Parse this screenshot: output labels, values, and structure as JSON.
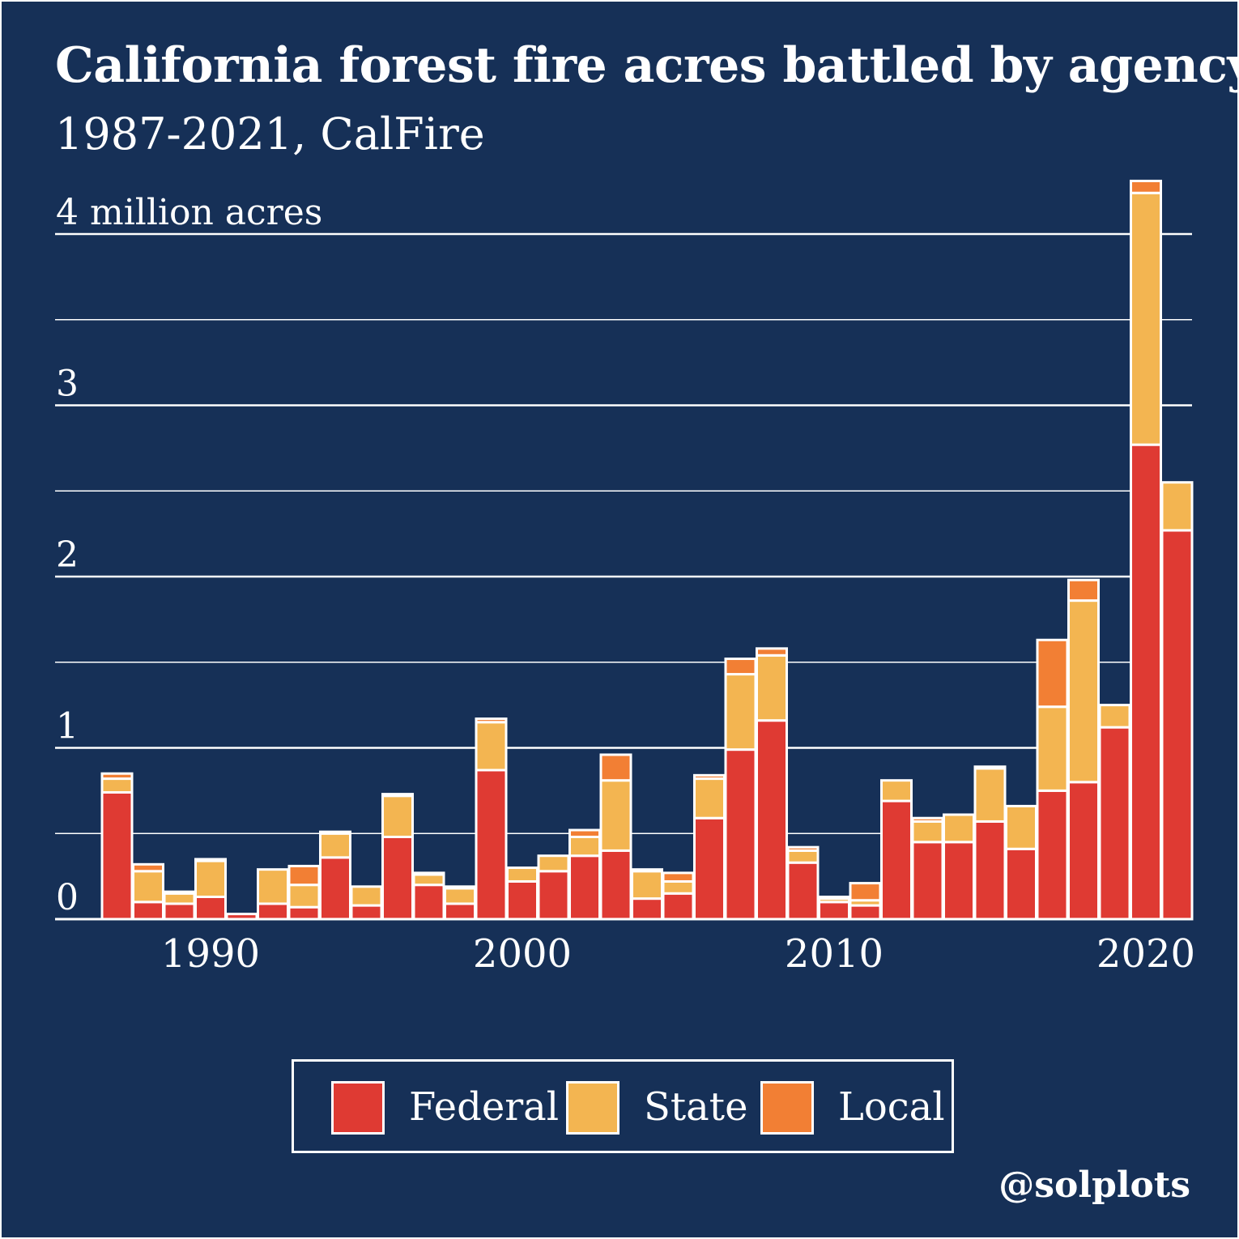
{
  "title": "California forest fire acres battled by agency",
  "subtitle": "1987-2021, CalFire",
  "credit": "@solplots",
  "colors": {
    "background": "#163057",
    "federal": "#df3a33",
    "state": "#f3b551",
    "local": "#f27f34",
    "outline": "#ffffff"
  },
  "chart_data": {
    "type": "bar",
    "stacked": true,
    "x": [
      1987,
      1988,
      1989,
      1990,
      1991,
      1992,
      1993,
      1994,
      1995,
      1996,
      1997,
      1998,
      1999,
      2000,
      2001,
      2002,
      2003,
      2004,
      2005,
      2006,
      2007,
      2008,
      2009,
      2010,
      2011,
      2012,
      2013,
      2014,
      2015,
      2016,
      2017,
      2018,
      2019,
      2020,
      2021
    ],
    "series": [
      {
        "name": "Federal",
        "color": "#df3a33",
        "values": [
          0.74,
          0.1,
          0.09,
          0.13,
          0.03,
          0.09,
          0.07,
          0.36,
          0.08,
          0.48,
          0.2,
          0.09,
          0.87,
          0.22,
          0.28,
          0.37,
          0.4,
          0.12,
          0.15,
          0.59,
          0.99,
          1.16,
          0.33,
          0.1,
          0.08,
          0.69,
          0.45,
          0.45,
          0.57,
          0.41,
          0.75,
          0.8,
          1.12,
          2.77,
          2.27
        ]
      },
      {
        "name": "State",
        "color": "#f3b551",
        "values": [
          0.08,
          0.18,
          0.06,
          0.21,
          0.0,
          0.2,
          0.13,
          0.14,
          0.11,
          0.24,
          0.06,
          0.09,
          0.28,
          0.08,
          0.09,
          0.11,
          0.41,
          0.16,
          0.07,
          0.23,
          0.44,
          0.38,
          0.07,
          0.02,
          0.03,
          0.12,
          0.12,
          0.16,
          0.31,
          0.25,
          0.49,
          1.06,
          0.13,
          1.47,
          0.28
        ]
      },
      {
        "name": "Local",
        "color": "#f27f34",
        "values": [
          0.03,
          0.04,
          0.01,
          0.01,
          0.0,
          0.0,
          0.11,
          0.01,
          0.0,
          0.01,
          0.01,
          0.01,
          0.02,
          0.0,
          0.0,
          0.04,
          0.15,
          0.01,
          0.05,
          0.02,
          0.09,
          0.04,
          0.02,
          0.01,
          0.1,
          0.0,
          0.02,
          0.0,
          0.01,
          0.0,
          0.39,
          0.12,
          0.0,
          0.07,
          0.0
        ]
      }
    ],
    "y_tick_labels": [
      "0",
      "1",
      "2",
      "3",
      "4 million acres"
    ],
    "y_ticks": [
      0,
      1,
      2,
      3,
      4
    ],
    "minor_gridlines": [
      0.5,
      1.5,
      2.5,
      3.5
    ],
    "x_tick_labels": [
      "1990",
      "2000",
      "2010",
      "2020"
    ],
    "x_ticks": [
      1990,
      2000,
      2010,
      2020
    ],
    "ylim": [
      0,
      4.25
    ],
    "grid": true,
    "legend_position": "bottom-center"
  }
}
